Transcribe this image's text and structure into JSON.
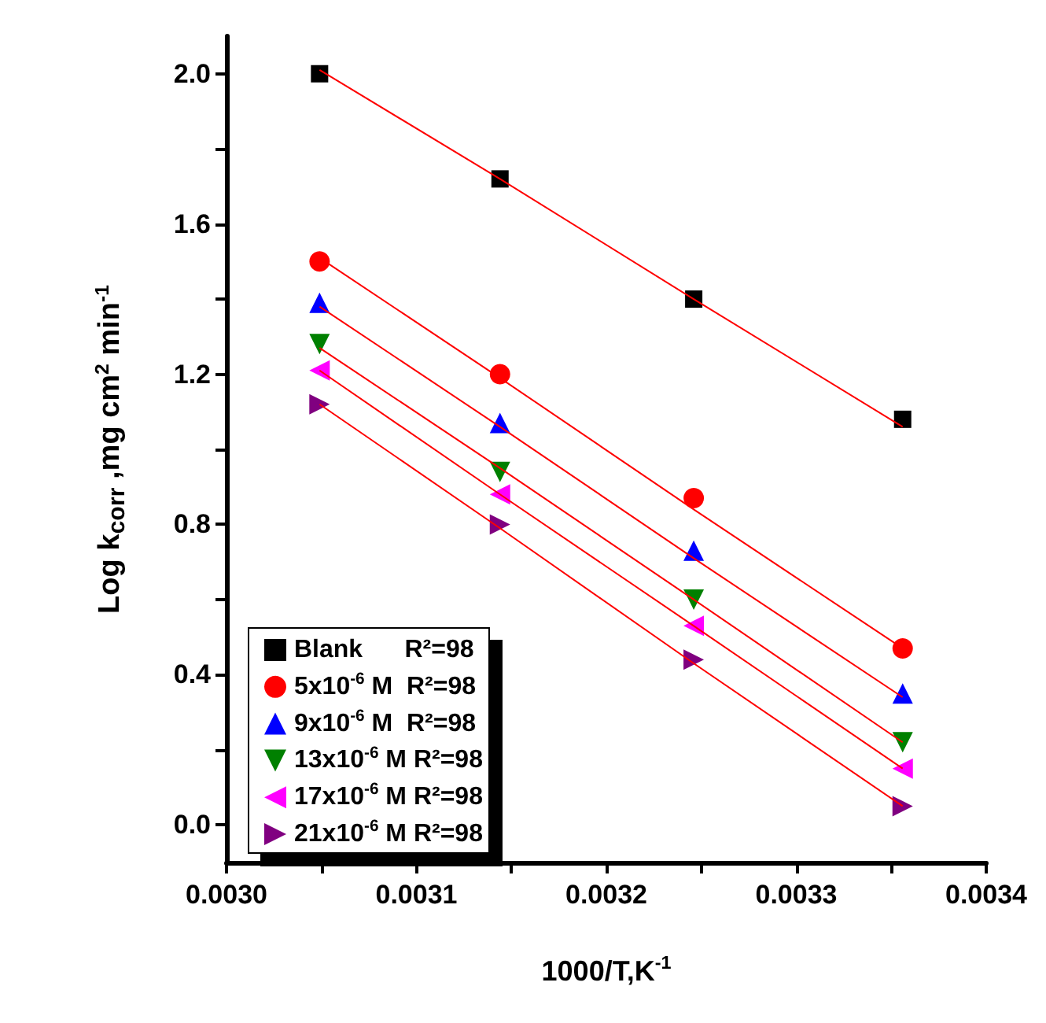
{
  "chart_data": {
    "type": "scatter",
    "xlabel": "1000/T,K$^{-1}$",
    "ylabel": "Log k$_{corr}$ ,mg cm$^{2}$ min$^{-1}$",
    "xlim": [
      0.003,
      0.0034
    ],
    "ylim": [
      -0.1,
      2.1
    ],
    "xticks": [
      {
        "value": 0.003,
        "label": "0.0030"
      },
      {
        "value": 0.00305,
        "label": null
      },
      {
        "value": 0.0031,
        "label": "0.0031"
      },
      {
        "value": 0.00315,
        "label": null
      },
      {
        "value": 0.0032,
        "label": "0.0032"
      },
      {
        "value": 0.00325,
        "label": null
      },
      {
        "value": 0.0033,
        "label": "0.0033"
      },
      {
        "value": 0.00335,
        "label": null
      },
      {
        "value": 0.0034,
        "label": "0.0034"
      }
    ],
    "yticks": [
      {
        "value": 0,
        "label": "0.0"
      },
      {
        "value": 0.2,
        "label": null
      },
      {
        "value": 0.4,
        "label": "0.4"
      },
      {
        "value": 0.6,
        "label": null
      },
      {
        "value": 0.8,
        "label": "0.8"
      },
      {
        "value": 1,
        "label": null
      },
      {
        "value": 1.2,
        "label": "1.2"
      },
      {
        "value": 1.4,
        "label": null
      },
      {
        "value": 1.6,
        "label": "1.6"
      },
      {
        "value": 1.8,
        "label": null
      },
      {
        "value": 2,
        "label": "2.0"
      }
    ],
    "grid": false,
    "legend": "bottom left",
    "x": [
      0.003049,
      0.003144,
      0.003246,
      0.003356
    ],
    "series": [
      {
        "name": "Blank      R²=98",
        "color": "#000000",
        "marker": "square",
        "values": [
          2.0,
          1.72,
          1.4,
          1.08
        ]
      },
      {
        "name": "5x10$^{-6}$ M  R²=98",
        "color": "#ff0000",
        "marker": "circle",
        "values": [
          1.5,
          1.2,
          0.87,
          0.47
        ]
      },
      {
        "name": "9x10$^{-6}$ M  R²=98",
        "color": "#0000ff",
        "marker": "triangle",
        "values": [
          1.39,
          1.07,
          0.73,
          0.35
        ]
      },
      {
        "name": "13x10$^{-6}$ M R²=98",
        "color": "#008000",
        "marker": "triangle-down",
        "values": [
          1.28,
          0.94,
          0.6,
          0.22
        ]
      },
      {
        "name": "17x10$^{-6}$ M R²=98",
        "color": "#ff00ff",
        "marker": "triangle-left",
        "values": [
          1.21,
          0.88,
          0.53,
          0.15
        ]
      },
      {
        "name": "21x10$^{-6}$ M R²=98",
        "color": "#800080",
        "marker": "triangle-right",
        "values": [
          1.12,
          0.8,
          0.44,
          0.05
        ]
      },
      {
        "type": "line",
        "color": "#ff0000",
        "marker": "none",
        "values": [
          2.01,
          1.72,
          1.4,
          1.06
        ]
      },
      {
        "type": "line",
        "color": "#ff0000",
        "marker": "none",
        "values": [
          1.51,
          1.19,
          0.84,
          0.47
        ]
      },
      {
        "type": "line",
        "color": "#ff0000",
        "marker": "none",
        "values": [
          1.38,
          1.06,
          0.71,
          0.34
        ]
      },
      {
        "type": "line",
        "color": "#ff0000",
        "marker": "none",
        "values": [
          1.27,
          0.95,
          0.6,
          0.22
        ]
      },
      {
        "type": "line",
        "color": "#ff0000",
        "marker": "none",
        "values": [
          1.21,
          0.88,
          0.53,
          0.15
        ]
      },
      {
        "type": "line",
        "color": "#ff0000",
        "marker": "none",
        "values": [
          1.12,
          0.79,
          0.43,
          0.05
        ]
      }
    ]
  }
}
